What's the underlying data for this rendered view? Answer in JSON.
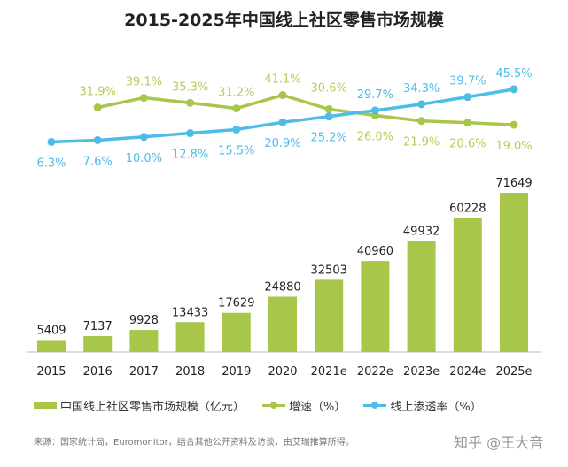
{
  "chart_data": {
    "type": "bar+line",
    "title": "2015-2025年中国线上社区零售市场规模",
    "categories": [
      "2015",
      "2016",
      "2017",
      "2018",
      "2019",
      "2020",
      "2021e",
      "2022e",
      "2023e",
      "2024e",
      "2025e"
    ],
    "series": [
      {
        "name": "中国线上社区零售市场规模（亿元）",
        "type": "bar",
        "color": "#a8c64a",
        "values": [
          5409,
          7137,
          9928,
          13433,
          17629,
          24880,
          32503,
          40960,
          49932,
          60228,
          71649
        ]
      },
      {
        "name": "增速（%）",
        "type": "line",
        "color": "#a8c64a",
        "values": [
          null,
          31.9,
          39.1,
          35.3,
          31.2,
          41.1,
          30.6,
          26.0,
          21.9,
          20.6,
          19.0
        ]
      },
      {
        "name": "线上渗透率（%）",
        "type": "line",
        "color": "#4dbde6",
        "values": [
          6.3,
          7.6,
          10.0,
          12.8,
          15.5,
          20.9,
          25.2,
          29.7,
          34.3,
          39.7,
          45.5
        ]
      }
    ],
    "grid": false,
    "legend": "bottom"
  },
  "source": "来源：国家统计局，Euromonitor，结合其他公开资料及访谈，由艾瑞推算所得。",
  "watermark": "知乎 @王大音"
}
